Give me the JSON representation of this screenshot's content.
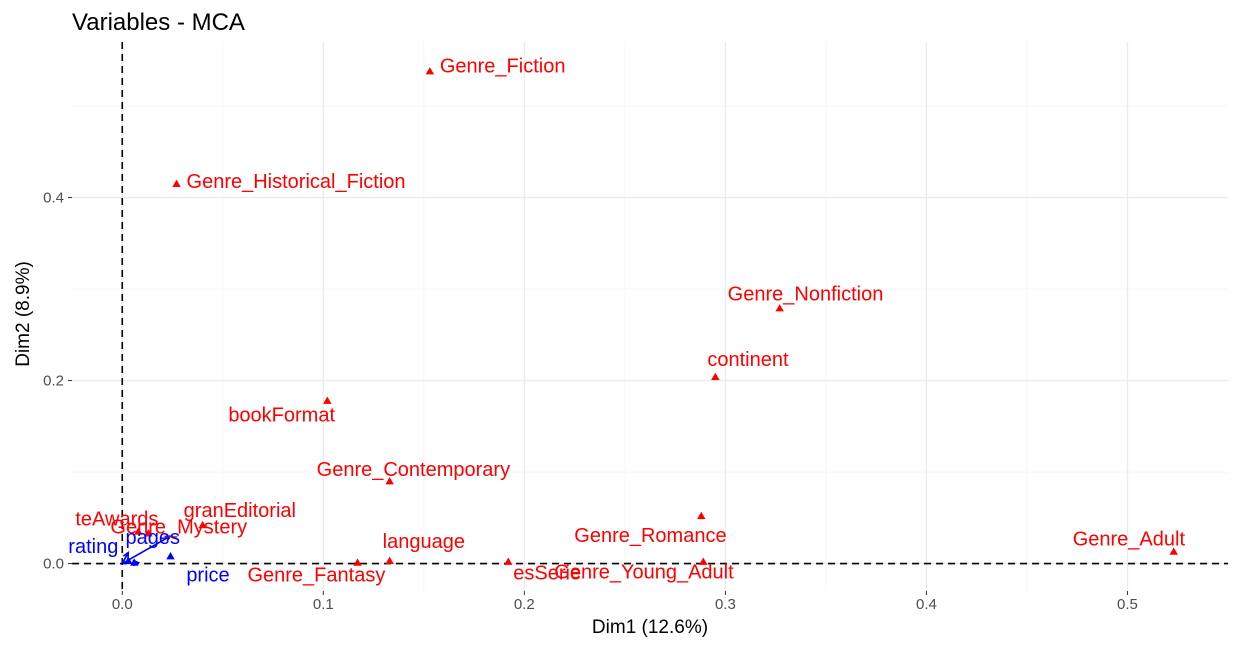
{
  "chart_data": {
    "type": "scatter",
    "title": "Variables - MCA",
    "xlabel": "Dim1 (12.6%)",
    "ylabel": "Dim2 (8.9%)",
    "xlim": [
      -0.025,
      0.55
    ],
    "ylim": [
      -0.03,
      0.57
    ],
    "x_ticks": [
      0.0,
      0.1,
      0.2,
      0.3,
      0.4,
      0.5
    ],
    "x_tick_labels": [
      "0.0",
      "0.1",
      "0.2",
      "0.3",
      "0.4",
      "0.5"
    ],
    "y_ticks": [
      0.0,
      0.2,
      0.4
    ],
    "y_tick_labels": [
      "0.0",
      "0.2",
      "0.4"
    ],
    "grid": true,
    "reference_lines": {
      "x": 0,
      "y": 0
    },
    "colors": {
      "active": "#ff0000",
      "supplementary": "#0000ff"
    },
    "points": [
      {
        "label": "Genre_Fiction",
        "x": 0.153,
        "y": 0.538,
        "group": "active"
      },
      {
        "label": "Genre_Historical_Fiction",
        "x": 0.027,
        "y": 0.415,
        "group": "active"
      },
      {
        "label": "Genre_Nonfiction",
        "x": 0.327,
        "y": 0.279,
        "group": "active"
      },
      {
        "label": "continent",
        "x": 0.295,
        "y": 0.204,
        "group": "active"
      },
      {
        "label": "bookFormat",
        "x": 0.102,
        "y": 0.178,
        "group": "active"
      },
      {
        "label": "Genre_Contemporary",
        "x": 0.133,
        "y": 0.09,
        "group": "active"
      },
      {
        "label": "Genre_Romance",
        "x": 0.288,
        "y": 0.052,
        "group": "active"
      },
      {
        "label": "granEditorial",
        "x": 0.04,
        "y": 0.042,
        "group": "active"
      },
      {
        "label": "teAwards",
        "x": 0.008,
        "y": 0.035,
        "group": "active"
      },
      {
        "label": "Genre_Adult",
        "x": 0.523,
        "y": 0.013,
        "group": "active"
      },
      {
        "label": "language",
        "x": 0.133,
        "y": 0.003,
        "group": "active"
      },
      {
        "label": "Genre_Mystery",
        "x": 0.013,
        "y": 0.033,
        "group": "active"
      },
      {
        "label": "Genre_Fantasy",
        "x": 0.117,
        "y": 0.001,
        "group": "active"
      },
      {
        "label": "esSerie",
        "x": 0.192,
        "y": 0.002,
        "group": "active"
      },
      {
        "label": "Genre_Young_Adult",
        "x": 0.289,
        "y": 0.002,
        "group": "active"
      },
      {
        "label": "pages",
        "x": 0.024,
        "y": 0.008,
        "group": "supplementary"
      },
      {
        "label": "rating",
        "x": 0.003,
        "y": 0.003,
        "group": "supplementary"
      },
      {
        "label": "price",
        "x": 0.006,
        "y": 0.001,
        "group": "supplementary"
      }
    ],
    "arrows": [
      {
        "x": 0.024,
        "y": 0.03,
        "group": "supplementary"
      },
      {
        "x": 0.003,
        "y": 0.012,
        "group": "supplementary"
      },
      {
        "x": 0.008,
        "y": 0.001,
        "group": "supplementary"
      }
    ]
  }
}
